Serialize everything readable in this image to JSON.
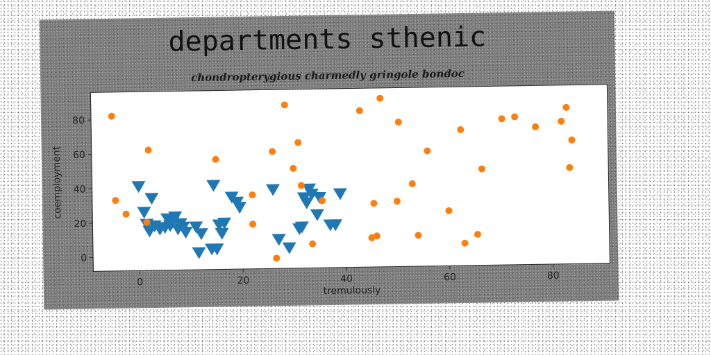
{
  "chart_data": {
    "type": "scatter",
    "title": "departments sthenic",
    "subtitle": "chondropterygious charmedly gringole bondoc",
    "xlabel": "tremulously",
    "ylabel": "coemployment",
    "xlim": [
      -9,
      91
    ],
    "ylim": [
      -8,
      96
    ],
    "xticks": [
      0,
      20,
      40,
      60,
      80
    ],
    "yticks": [
      0,
      20,
      40,
      60,
      80
    ],
    "grid": false,
    "series": [
      {
        "marker": "triangle-down",
        "color": "#1f77b4",
        "points": [
          [
            0,
            41
          ],
          [
            1,
            26
          ],
          [
            1.5,
            19
          ],
          [
            2,
            15
          ],
          [
            2.5,
            34
          ],
          [
            3,
            18
          ],
          [
            4,
            16
          ],
          [
            5,
            17
          ],
          [
            5.5,
            22
          ],
          [
            6,
            18
          ],
          [
            6.5,
            20
          ],
          [
            7,
            23
          ],
          [
            7.5,
            16
          ],
          [
            8,
            19
          ],
          [
            8.5,
            17
          ],
          [
            9,
            14
          ],
          [
            11,
            17
          ],
          [
            11.5,
            2
          ],
          [
            12,
            13
          ],
          [
            14,
            4
          ],
          [
            14.5,
            41
          ],
          [
            15,
            4
          ],
          [
            15.5,
            18
          ],
          [
            16,
            13
          ],
          [
            16.5,
            19
          ],
          [
            18,
            34
          ],
          [
            19,
            31
          ],
          [
            19.5,
            28
          ],
          [
            26,
            38
          ],
          [
            27,
            9
          ],
          [
            29,
            4
          ],
          [
            31,
            15
          ],
          [
            32,
            33
          ],
          [
            33,
            38
          ],
          [
            32.5,
            30
          ],
          [
            33.5,
            35
          ],
          [
            34.5,
            23
          ],
          [
            35,
            33
          ],
          [
            37,
            17
          ],
          [
            38,
            17
          ],
          [
            39,
            35
          ],
          [
            31.5,
            16
          ]
        ]
      },
      {
        "marker": "circle",
        "color": "#ff7f0e",
        "points": [
          [
            -5,
            82
          ],
          [
            -4.5,
            33
          ],
          [
            -2.5,
            25
          ],
          [
            2,
            62
          ],
          [
            1.5,
            20
          ],
          [
            15,
            56
          ],
          [
            22,
            35
          ],
          [
            22,
            18
          ],
          [
            26,
            60
          ],
          [
            26.5,
            -2
          ],
          [
            28.5,
            87
          ],
          [
            30,
            50
          ],
          [
            31,
            65
          ],
          [
            31.5,
            40
          ],
          [
            33.5,
            6
          ],
          [
            35.5,
            31
          ],
          [
            43,
            83
          ],
          [
            45,
            9
          ],
          [
            45.5,
            29
          ],
          [
            46,
            10
          ],
          [
            47,
            90
          ],
          [
            50,
            30
          ],
          [
            50.5,
            76
          ],
          [
            53,
            40
          ],
          [
            54,
            10
          ],
          [
            56,
            59
          ],
          [
            60,
            24
          ],
          [
            62.5,
            71
          ],
          [
            63,
            5
          ],
          [
            65.5,
            10
          ],
          [
            66.5,
            48
          ],
          [
            70.5,
            77
          ],
          [
            73,
            78
          ],
          [
            77,
            72
          ],
          [
            82,
            75
          ],
          [
            83,
            83
          ],
          [
            83.5,
            48
          ],
          [
            84,
            64
          ]
        ]
      }
    ]
  }
}
